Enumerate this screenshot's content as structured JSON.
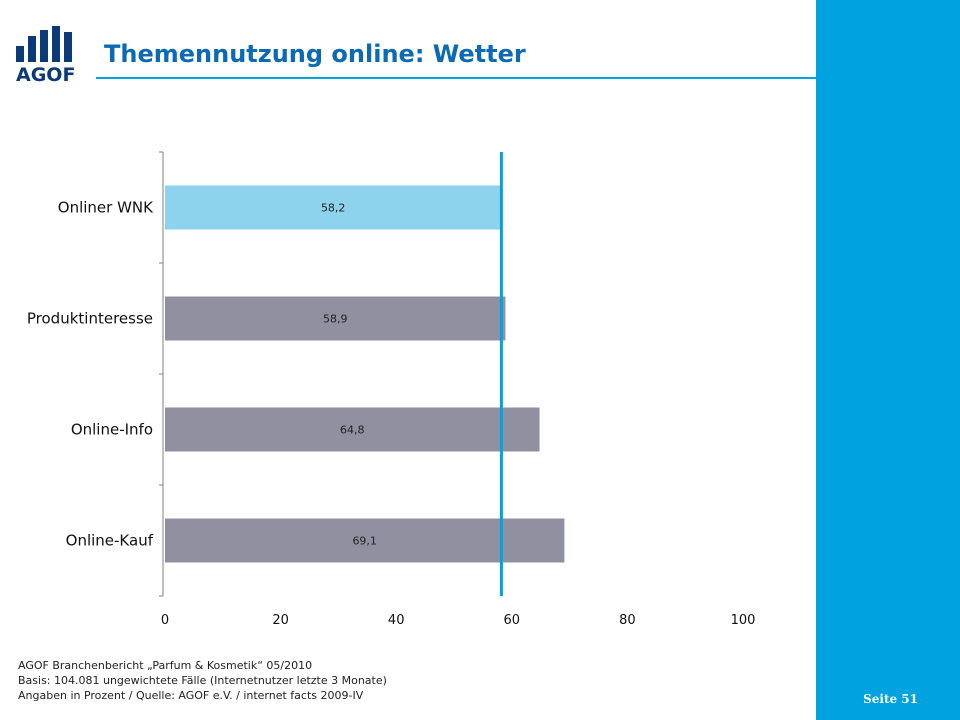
{
  "header": {
    "logo_text": "AGOF",
    "title": "Themennutzung online: Wetter"
  },
  "footer": {
    "lines": [
      "AGOF Branchenbericht „Parfum & Kosmetik“ 05/2010",
      "Basis: 104.081 ungewichtete Fälle (Internetnutzer letzte 3 Monate)",
      "Angaben in Prozent / Quelle: AGOF e.V. / internet facts 2009-IV"
    ],
    "page_number": "Seite 51"
  },
  "colors": {
    "accent": "#00a3e0",
    "title": "#0a6ab5",
    "highlight_bar": "#8dd3ee",
    "bar": "#9090a0",
    "reference_line": "#00a3e0",
    "logo": "#0a3a78"
  },
  "chart_data": {
    "type": "bar",
    "orientation": "horizontal",
    "categories": [
      "Onliner WNK",
      "Produktinteresse",
      "Online-Info",
      "Online-Kauf"
    ],
    "values": [
      58.2,
      58.9,
      64.8,
      69.1
    ],
    "value_labels": [
      "58,2",
      "58,9",
      "64,8",
      "69,1"
    ],
    "highlighted_category": "Onliner WNK",
    "reference_line": 58.2,
    "xlim": [
      0,
      100
    ],
    "xticks": [
      0,
      20,
      40,
      60,
      80,
      100
    ],
    "grid": false
  }
}
